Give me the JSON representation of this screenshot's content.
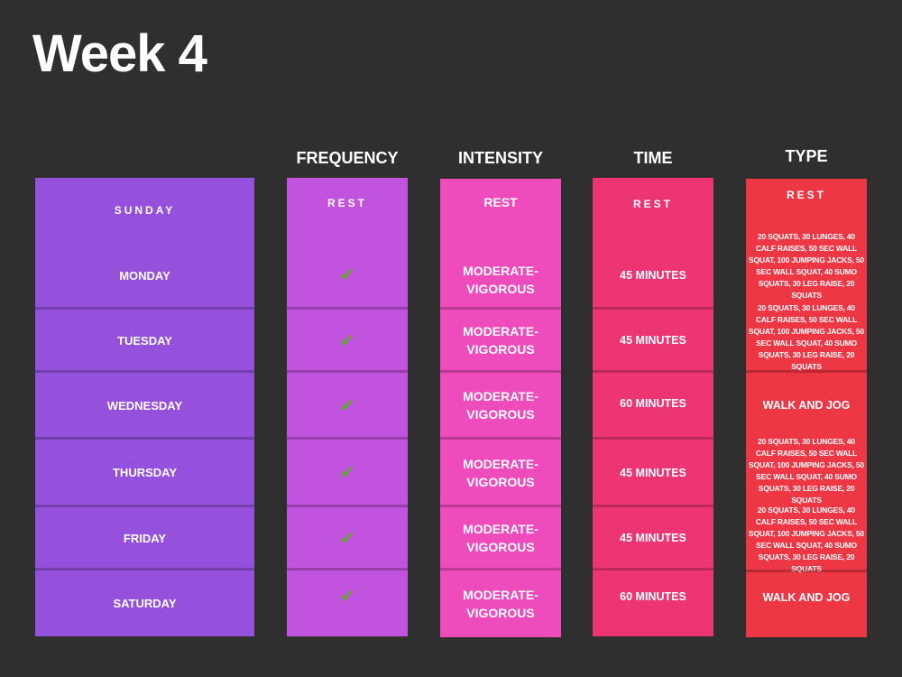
{
  "title": "Week 4",
  "columns": {
    "frequency": "FREQUENCY",
    "intensity": "INTENSITY",
    "time": "TIME",
    "type": "TYPE"
  },
  "icons": {
    "check": "check-icon",
    "check_color": "#5fa52e"
  },
  "colors": {
    "background": "#2f2f2f",
    "days": "#9550dc",
    "frequency": "#c253de",
    "intensity": "#ee4bbd",
    "time": "#ee3574",
    "type": "#ee3745"
  },
  "rows": [
    {
      "day": "SUNDAY",
      "frequency": "REST",
      "intensity": "REST",
      "time": "REST",
      "type": "REST"
    },
    {
      "day": "MONDAY",
      "frequency": "✔",
      "intensity": "MODERATE-VIGOROUS",
      "time": "45 MINUTES",
      "type": "20 SQUATS, 30 LUNGES, 40 CALF RAISES, 50 SEC WALL SQUAT, 100 JUMPING JACKS, 50 SEC WALL SQUAT, 40 SUMO SQUATS, 30 LEG RAISE, 20 SQUATS"
    },
    {
      "day": "TUESDAY",
      "frequency": "✔",
      "intensity": "MODERATE-VIGOROUS",
      "time": "45 MINUTES",
      "type": "20 SQUATS, 30 LUNGES, 40 CALF RAISES, 50 SEC WALL SQUAT, 100 JUMPING JACKS, 50 SEC WALL SQUAT, 40 SUMO SQUATS, 30 LEG RAISE, 20 SQUATS"
    },
    {
      "day": "WEDNESDAY",
      "frequency": "✔",
      "intensity": "MODERATE-VIGOROUS",
      "time": "60 MINUTES",
      "type": "WALK AND JOG"
    },
    {
      "day": "THURSDAY",
      "frequency": "✔",
      "intensity": "MODERATE-VIGOROUS",
      "time": "45 MINUTES",
      "type": "20 SQUATS, 30 LUNGES, 40 CALF RAISES, 50 SEC WALL SQUAT, 100 JUMPING JACKS, 50 SEC WALL SQUAT, 40 SUMO SQUATS, 30 LEG RAISE, 20 SQUATS"
    },
    {
      "day": "FRIDAY",
      "frequency": "✔",
      "intensity": "MODERATE-VIGOROUS",
      "time": "45 MINUTES",
      "type": "20 SQUATS, 30 LUNGES, 40 CALF RAISES, 50 SEC WALL SQUAT, 100 JUMPING JACKS, 50 SEC WALL SQUAT, 40 SUMO SQUATS, 30 LEG RAISE, 20 SQUATS"
    },
    {
      "day": "SATURDAY",
      "frequency": "✔",
      "intensity": "MODERATE-VIGOROUS",
      "time": "60 MINUTES",
      "type": "WALK AND JOG"
    }
  ]
}
